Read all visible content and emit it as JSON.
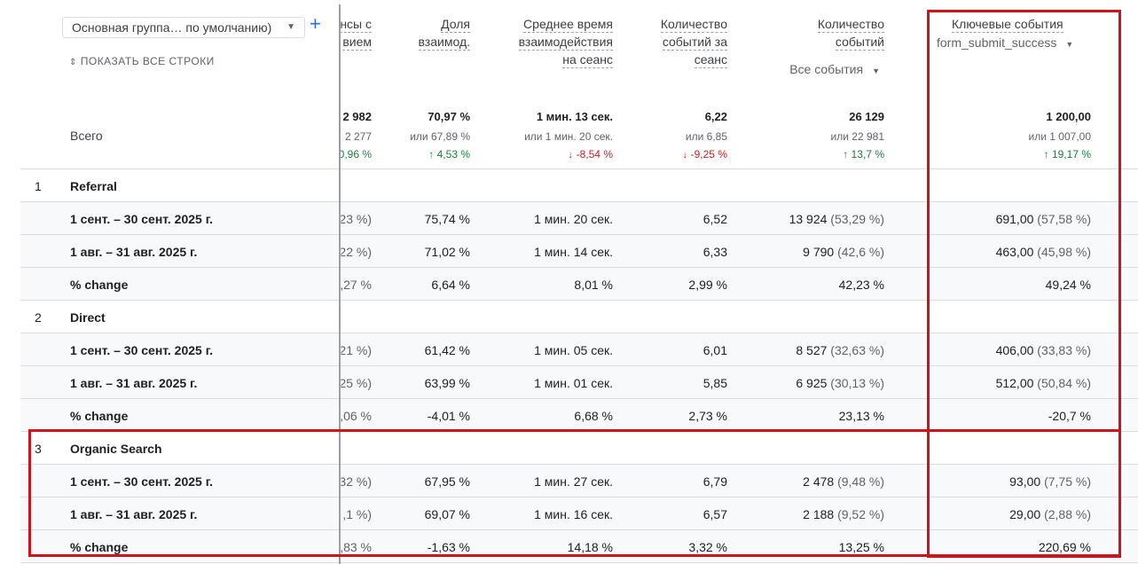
{
  "header": {
    "dropdown": "Основная группа… по умолчанию)",
    "show_all": "ПОКАЗАТЬ ВСЕ СТРОКИ",
    "columns": [
      {
        "lines": [
          "нсы с",
          "вием"
        ]
      },
      {
        "lines": [
          "Доля",
          "взаимод."
        ]
      },
      {
        "lines": [
          "Среднее время",
          "взаимодействия",
          "на сеанс"
        ]
      },
      {
        "lines": [
          "Количество",
          "событий за",
          "сеанс"
        ]
      },
      {
        "lines": [
          "Количество",
          "событий"
        ],
        "filter": "Все события"
      },
      {
        "lines": [
          "Ключевые события"
        ],
        "filter": "form_submit_success"
      }
    ]
  },
  "totals": {
    "label": "Всего",
    "cells": [
      {
        "value": "2 982",
        "compare": "2 277",
        "change": "0,96 %"
      },
      {
        "value": "70,97 %",
        "compare": "или 67,89 %",
        "change": "↑ 4,53 %"
      },
      {
        "value": "1 мин. 13 сек.",
        "compare": "или 1 мин. 20 сек.",
        "change": "↓ -8,54 %"
      },
      {
        "value": "6,22",
        "compare": "или 6,85",
        "change": "↓ -9,25 %"
      },
      {
        "value": "26 129",
        "compare": "или 22 981",
        "change": "↑ 13,7 %"
      },
      {
        "value": "1 200,00",
        "compare": "или 1 007,00",
        "change": "↑ 19,17 %"
      }
    ]
  },
  "groups": [
    {
      "index": "1",
      "name": "Referral",
      "rows": [
        {
          "label": "1 сент. – 30 сент. 2025 г.",
          "cells": [
            "23 %)",
            "75,74 %",
            "1 мин. 20 сек.",
            "6,52",
            [
              "13 924",
              "(53,29 %)"
            ],
            [
              "691,00",
              "(57,58 %)"
            ]
          ]
        },
        {
          "label": "1 авг. – 31 авг. 2025 г.",
          "cells": [
            "22 %)",
            "71,02 %",
            "1 мин. 14 сек.",
            "6,33",
            [
              "9 790",
              "(42,6 %)"
            ],
            [
              "463,00",
              "(45,98 %)"
            ]
          ]
        },
        {
          "label": "% change",
          "cells": [
            ",27 %",
            "6,64 %",
            "8,01 %",
            "2,99 %",
            "42,23 %",
            "49,24 %"
          ]
        }
      ]
    },
    {
      "index": "2",
      "name": "Direct",
      "rows": [
        {
          "label": "1 сент. – 30 сент. 2025 г.",
          "cells": [
            "21 %)",
            "61,42 %",
            "1 мин. 05 сек.",
            "6,01",
            [
              "8 527",
              "(32,63 %)"
            ],
            [
              "406,00",
              "(33,83 %)"
            ]
          ]
        },
        {
          "label": "1 авг. – 31 авг. 2025 г.",
          "cells": [
            "25 %)",
            "63,99 %",
            "1 мин. 01 сек.",
            "5,85",
            [
              "6 925",
              "(30,13 %)"
            ],
            [
              "512,00",
              "(50,84 %)"
            ]
          ]
        },
        {
          "label": "% change",
          "cells": [
            ",06 %",
            "-4,01 %",
            "6,68 %",
            "2,73 %",
            "23,13 %",
            "-20,7 %"
          ]
        }
      ]
    },
    {
      "index": "3",
      "name": "Organic Search",
      "rows": [
        {
          "label": "1 сент. – 30 сент. 2025 г.",
          "cells": [
            "32 %)",
            "67,95 %",
            "1 мин. 27 сек.",
            "6,79",
            [
              "2 478",
              "(9,48 %)"
            ],
            [
              "93,00",
              "(7,75 %)"
            ]
          ]
        },
        {
          "label": "1 авг. – 31 авг. 2025 г.",
          "cells": [
            ",1 %)",
            "69,07 %",
            "1 мин. 16 сек.",
            "6,57",
            [
              "2 188",
              "(9,52 %)"
            ],
            [
              "29,00",
              "(2,88 %)"
            ]
          ]
        },
        {
          "label": "% change",
          "cells": [
            ",83 %",
            "-1,63 %",
            "14,18 %",
            "3,32 %",
            "13,25 %",
            "220,69 %"
          ]
        }
      ]
    }
  ]
}
